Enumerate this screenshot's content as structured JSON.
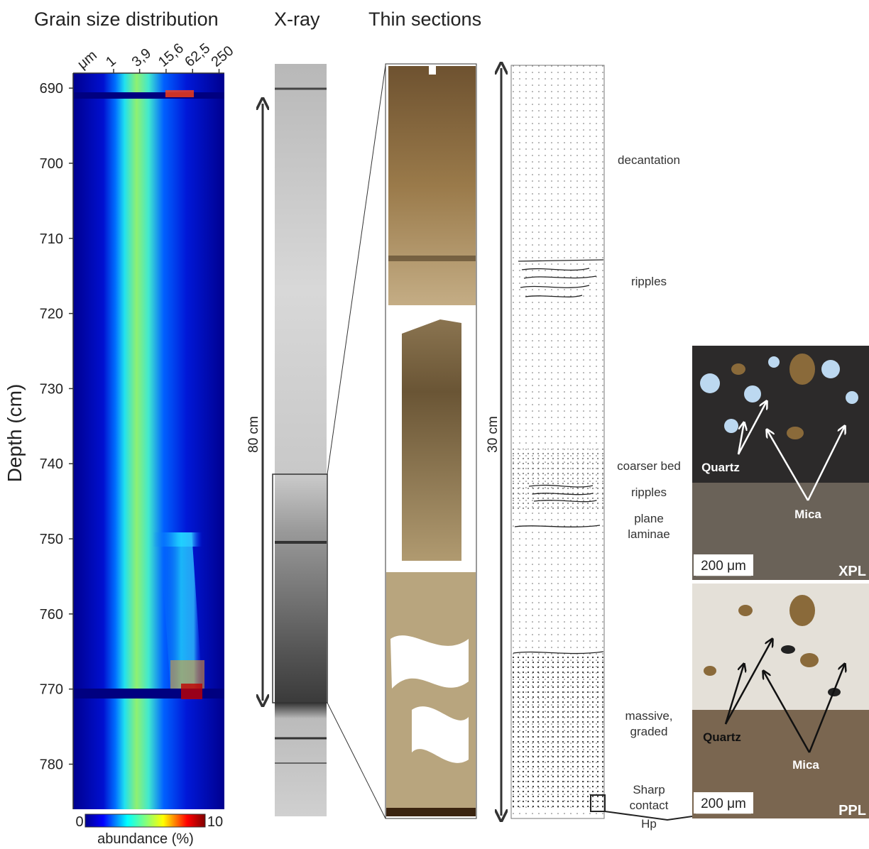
{
  "header": {
    "titles": [
      "Grain size distribution",
      "X-ray",
      "Thin sections"
    ]
  },
  "chart_data": {
    "type": "heatmap",
    "y_label": "Depth (cm)",
    "x_unit": "μm",
    "ylim": [
      688,
      786
    ],
    "yticks": [
      690,
      700,
      710,
      720,
      730,
      740,
      750,
      760,
      770,
      780
    ],
    "xlim": [
      0.12,
      330
    ],
    "xscale": "log",
    "xticks": [
      1,
      {
        "value": 3.9,
        "label": "3,9"
      },
      {
        "value": 15.6,
        "label": "15,6"
      },
      {
        "value": 62.5,
        "label": "62,5"
      },
      250
    ],
    "colorbar": {
      "label": "abundance (%)",
      "clim": [
        0,
        10
      ],
      "colormap": "jet"
    }
  },
  "scale_bars": [
    "80 cm",
    "30 cm"
  ],
  "facies": [
    [
      "decantation"
    ],
    [
      "ripples"
    ],
    [
      "coarser bed"
    ],
    [
      "ripples"
    ],
    [
      "plane",
      "laminae"
    ],
    [
      "massive,",
      "graded"
    ],
    [
      "Sharp",
      "contact"
    ],
    [
      "Hp"
    ]
  ],
  "micrographs": [
    {
      "mode": "XPL",
      "labels": [
        "Quartz",
        "Mica"
      ],
      "scale": "200 μm"
    },
    {
      "mode": "PPL",
      "labels": [
        "Quartz",
        "Mica"
      ],
      "scale": "200 μm"
    }
  ]
}
